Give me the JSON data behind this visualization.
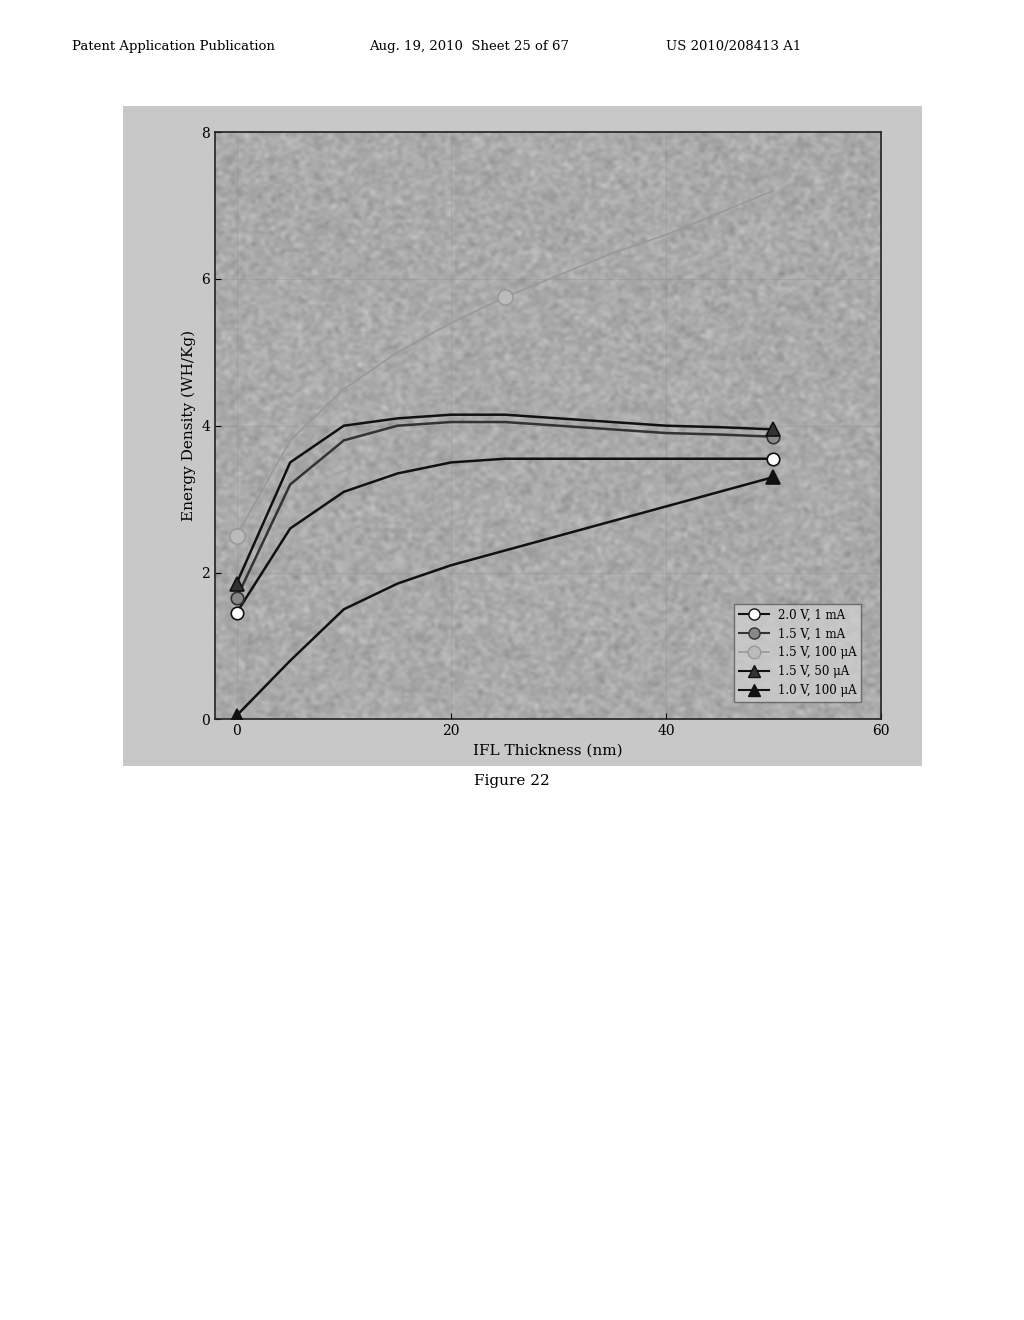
{
  "figure_label": "Figure 22",
  "xlabel": "IFL Thickness (nm)",
  "ylabel": "Energy Density (WH/Kg)",
  "xlim": [
    -2,
    60
  ],
  "ylim": [
    0,
    8
  ],
  "xticks": [
    0,
    20,
    40,
    60
  ],
  "yticks": [
    0,
    2,
    4,
    6,
    8
  ],
  "page_bg": "#e8e8e8",
  "chart_outer_bg": "#c0c0c0",
  "chart_inner_bg": "#b8b8b8",
  "series": [
    {
      "label": "2.0 V, 1 mA",
      "x": [
        0,
        5,
        10,
        15,
        20,
        25,
        30,
        35,
        40,
        45,
        50
      ],
      "y": [
        1.45,
        2.6,
        3.1,
        3.35,
        3.5,
        3.55,
        3.55,
        3.55,
        3.55,
        3.55,
        3.55
      ],
      "color": "#111111",
      "marker": "o",
      "markerfacecolor": "white",
      "markeredgecolor": "#111111",
      "markersize": 9,
      "linewidth": 1.8,
      "linestyle": "-",
      "markevery": [
        0,
        10
      ]
    },
    {
      "label": "1.5 V, 1 mA",
      "x": [
        0,
        5,
        10,
        15,
        20,
        25,
        30,
        35,
        40,
        45,
        50
      ],
      "y": [
        1.65,
        3.2,
        3.8,
        4.0,
        4.05,
        4.05,
        4.0,
        3.95,
        3.9,
        3.88,
        3.85
      ],
      "color": "#333333",
      "marker": "o",
      "markerfacecolor": "#888888",
      "markeredgecolor": "#333333",
      "markersize": 9,
      "linewidth": 1.8,
      "linestyle": "-",
      "markevery": [
        0,
        10
      ]
    },
    {
      "label": "1.5 V, 100 uA",
      "x": [
        0,
        5,
        10,
        15,
        20,
        25,
        30,
        35,
        40,
        45,
        50
      ],
      "y": [
        2.5,
        3.8,
        4.5,
        5.0,
        5.4,
        5.75,
        6.05,
        6.35,
        6.6,
        6.9,
        7.2
      ],
      "color": "#999999",
      "marker": "o",
      "markerfacecolor": "#bbbbbb",
      "markeredgecolor": "#999999",
      "markersize": 11,
      "linewidth": 1.2,
      "linestyle": "-",
      "markevery": [
        0,
        5
      ]
    },
    {
      "label": "1.5 V, 50 uA",
      "x": [
        0,
        5,
        10,
        15,
        20,
        25,
        30,
        35,
        40,
        45,
        50
      ],
      "y": [
        1.85,
        3.5,
        4.0,
        4.1,
        4.15,
        4.15,
        4.1,
        4.05,
        4.0,
        3.98,
        3.95
      ],
      "color": "#111111",
      "marker": "^",
      "markerfacecolor": "#333333",
      "markeredgecolor": "#111111",
      "markersize": 10,
      "linewidth": 1.8,
      "linestyle": "-",
      "markevery": [
        0,
        10
      ]
    },
    {
      "label": "1.0 V, 100 uA",
      "x": [
        0,
        5,
        10,
        15,
        20,
        25,
        30,
        35,
        40,
        45,
        50
      ],
      "y": [
        0.05,
        0.8,
        1.5,
        1.85,
        2.1,
        2.3,
        2.5,
        2.7,
        2.9,
        3.1,
        3.3
      ],
      "color": "#111111",
      "marker": "^",
      "markerfacecolor": "#111111",
      "markeredgecolor": "#111111",
      "markersize": 10,
      "linewidth": 1.8,
      "linestyle": "-",
      "markevery": [
        0,
        10
      ]
    }
  ]
}
